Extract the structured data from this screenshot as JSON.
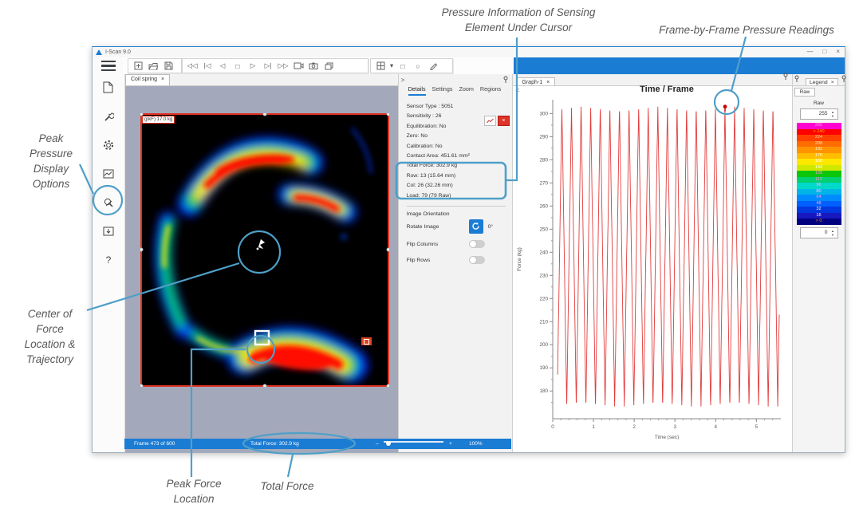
{
  "window": {
    "title": "I-Scan 9.0"
  },
  "glyphs": {
    "minimize": "—",
    "maximize": "□",
    "close": "×",
    "tab_close": "×",
    "caret_down": "▾",
    "chevron_right": ">",
    "chevron_left": "<",
    "spinner_up": "▲",
    "spinner_down": "▼",
    "rewind": "◁◁",
    "first_frame": "|◁",
    "step_back": "◁",
    "stop": "□",
    "play": "▷",
    "step_forward": "▷|",
    "fast_forward": "▷▷",
    "rect_tool": "□",
    "ellipse_tool": "○",
    "help": "?"
  },
  "toolbar": {
    "icons": [
      "add-view",
      "open-file",
      "save",
      "rewind",
      "first-frame",
      "step-back",
      "stop",
      "play",
      "step-forward",
      "fast-forward",
      "record-movie",
      "snapshot",
      "copy-image",
      "grid-layout",
      "rectangle-tool",
      "ellipse-tool",
      "draw-tool"
    ]
  },
  "sidebar": {
    "items": [
      "document",
      "calibration-wrench",
      "settings-gear",
      "image-display",
      "peak-pressure-display",
      "save-image",
      "help"
    ]
  },
  "tabs": {
    "document_tab": "Coil spring"
  },
  "map": {
    "peak_label": "(pkF) 17.0 kg"
  },
  "statusbar": {
    "frame": "Frame 473 of 600",
    "total_force": "Total Force: 302.9 kg",
    "zoom_out": "–",
    "zoom_in": "+",
    "zoom_level": "100%"
  },
  "details": {
    "tabs": [
      "Details",
      "Settings",
      "Zoom",
      "Regions"
    ],
    "fields": [
      "Sensor Type : 5051",
      "Sensitivity : 26",
      "Equilibration: No",
      "Zero: No",
      "Calibration: No",
      "Contact Area: 451.61 mm²",
      "Total Force: 302.9 kg",
      "Row: 13 (15.64 mm)",
      "Col: 26 (32.26 mm)",
      "Load: 79 (79 Raw)"
    ],
    "orientation_heading": "Image Orientation",
    "rotate_label": "Rotate Image",
    "rotate_value": "0°",
    "flip_columns_label": "Flip Columns",
    "flip_rows_label": "Flip Rows"
  },
  "graph": {
    "tab": "Graph-1"
  },
  "legend": {
    "tab": "Legend",
    "sub_tab": "Raw",
    "value_label": "Raw",
    "max_value": "255",
    "min_value": "0",
    "rows": [
      {
        "label": "255",
        "color": "#ff00d0",
        "text": "#ffa0e8"
      },
      {
        "label": "> 240",
        "color": "#ff0000",
        "text": "#ffb400"
      },
      {
        "label": "224",
        "color": "#ff4000",
        "text": "#ffd0a0"
      },
      {
        "label": "208",
        "color": "#ff6c00",
        "text": "#ffe0b0"
      },
      {
        "label": "192",
        "color": "#ff9400",
        "text": "#fff0d0"
      },
      {
        "label": "176",
        "color": "#ffbc00",
        "text": "#fff8e0"
      },
      {
        "label": "160",
        "color": "#ffe800",
        "text": "#ffffff"
      },
      {
        "label": "144",
        "color": "#d0e800",
        "text": "#ffffff"
      },
      {
        "label": "128",
        "color": "#0cc60c",
        "text": "#ff9ad0"
      },
      {
        "label": "112",
        "color": "#00d070",
        "text": "#ff9ad0"
      },
      {
        "label": "96",
        "color": "#00d8c8",
        "text": "#ffb0ff"
      },
      {
        "label": "80",
        "color": "#00b4e8",
        "text": "#ffc8ff"
      },
      {
        "label": "64",
        "color": "#008cff",
        "text": "#ff9ad0"
      },
      {
        "label": "48",
        "color": "#0060ff",
        "text": "#ffb0d0"
      },
      {
        "label": "32",
        "color": "#0038e0",
        "text": "#ffffff"
      },
      {
        "label": "16",
        "color": "#1818c0",
        "text": "#ffffff"
      },
      {
        "label": "> 0",
        "color": "#000080",
        "text": "#ff8c00"
      }
    ]
  },
  "annotations": {
    "color": "#4f9fc8",
    "pressure_info_line1": "Pressure Information of Sensing",
    "pressure_info_line2": "Element Under Cursor",
    "frame_readings": "Frame-by-Frame Pressure Readings",
    "peak_pressure_lines": [
      "Peak",
      "Pressure",
      "Display",
      "Options"
    ],
    "center_force_lines": [
      "Center of",
      "Force",
      "Location &",
      "Trajectory"
    ],
    "peak_force_lines": [
      "Peak Force",
      "Location"
    ],
    "total_force": "Total Force"
  },
  "chart_data": {
    "type": "line",
    "title": "Time / Frame",
    "xlabel": "Time (sec)",
    "ylabel": "Force (kg)",
    "xlim": [
      0,
      5.6
    ],
    "ylim": [
      168,
      306
    ],
    "x_ticks": [
      0,
      1,
      2,
      3,
      4,
      5
    ],
    "y_ticks": [
      180,
      190,
      200,
      210,
      220,
      230,
      240,
      250,
      260,
      270,
      280,
      290,
      300
    ],
    "grid": false,
    "legend_position": "none",
    "series": [
      {
        "name": "Total Force",
        "color": "#e23b3b",
        "waveform": {
          "shape": "triangle",
          "period_sec": 0.2355,
          "first_peak_sec": 0.225,
          "min_kg": 173,
          "max_kg": 303,
          "t_start": 0.12,
          "t_end": 5.56
        }
      }
    ],
    "current_frame_marker": {
      "time_sec": 4.23,
      "value_kg": 303,
      "color": "#cc0000"
    }
  }
}
